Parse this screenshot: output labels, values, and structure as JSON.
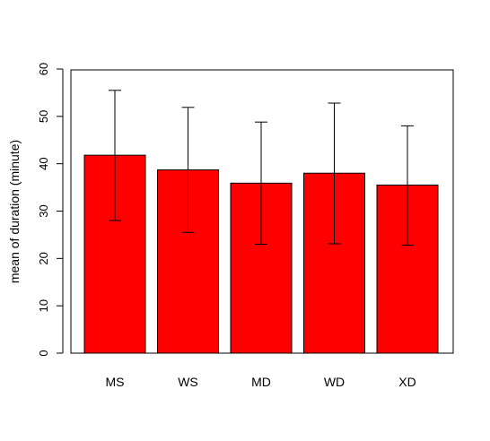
{
  "chart_data": {
    "type": "bar",
    "categories": [
      "MS",
      "WS",
      "MD",
      "WD",
      "XD"
    ],
    "values": [
      41.8,
      38.7,
      35.9,
      38.0,
      35.5
    ],
    "error_bars": {
      "lower": [
        28.0,
        25.5,
        23.0,
        23.1,
        22.8
      ],
      "upper": [
        55.5,
        51.9,
        48.8,
        52.8,
        48.0
      ]
    },
    "title": "",
    "xlabel": "",
    "ylabel": "mean of duration (minute)",
    "ylim": [
      0,
      60
    ],
    "yticks": [
      "0",
      "10",
      "20",
      "30",
      "40",
      "50",
      "60"
    ],
    "bar_color": "#ff0000",
    "grid": false,
    "legend": "none"
  }
}
